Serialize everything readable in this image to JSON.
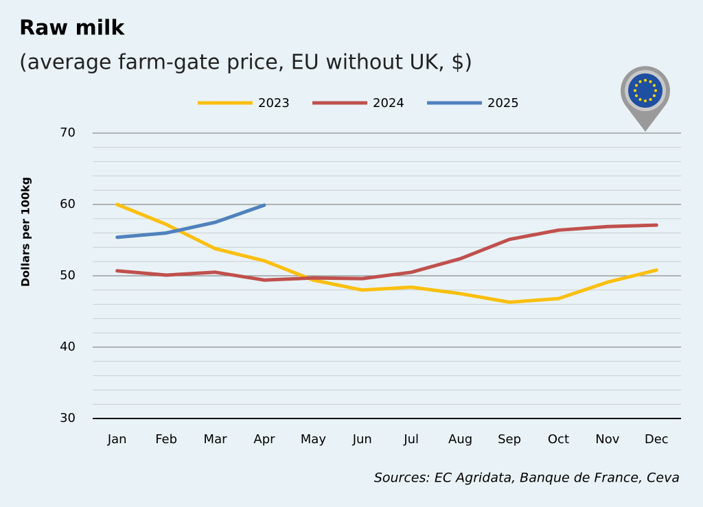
{
  "chart_data": {
    "type": "line",
    "title": "Raw milk",
    "subtitle": "(average farm-gate price, EU without UK, $)",
    "y_label": "Dollars per 100kg",
    "source": "Sources: EC Agridata, Banque de France, Ceva",
    "categories": [
      "Jan",
      "Feb",
      "Mar",
      "Apr",
      "May",
      "Jun",
      "Jul",
      "Aug",
      "Sep",
      "Oct",
      "Nov",
      "Dec"
    ],
    "series": [
      {
        "name": "2023",
        "color": "#fbbf0f",
        "values": [
          60.0,
          57.2,
          53.8,
          52.1,
          49.4,
          48.0,
          48.4,
          47.5,
          46.3,
          46.8,
          49.1,
          50.8
        ]
      },
      {
        "name": "2024",
        "color": "#c0504d",
        "values": [
          50.7,
          50.1,
          50.5,
          49.4,
          49.7,
          49.6,
          50.5,
          52.4,
          55.1,
          56.4,
          56.9,
          57.1
        ]
      },
      {
        "name": "2025",
        "color": "#4f81bd",
        "values": [
          55.4,
          56.0,
          57.5,
          59.9,
          null,
          null,
          null,
          null,
          null,
          null,
          null,
          null
        ]
      }
    ],
    "ylim": [
      30,
      70
    ],
    "yticks": [
      30,
      40,
      50,
      60,
      70
    ],
    "minor_yticks": [
      32,
      34,
      36,
      38,
      42,
      44,
      46,
      48,
      52,
      54,
      56,
      58,
      62,
      64,
      66,
      68
    ],
    "grid": true,
    "legend": "top"
  }
}
